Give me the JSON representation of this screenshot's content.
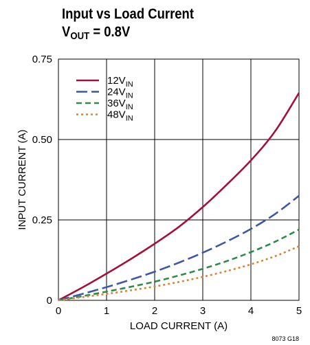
{
  "chart_data": {
    "type": "line",
    "title": "Input vs Load Current",
    "subtitle": {
      "main": "V",
      "sub": "OUT",
      "rest": " = 0.8V"
    },
    "xlabel": "LOAD CURRENT (A)",
    "ylabel": "INPUT CURRENT (A)",
    "xlim": [
      0,
      5
    ],
    "ylim": [
      0,
      0.75
    ],
    "x_ticks": [
      "0",
      "1",
      "2",
      "3",
      "4",
      "5"
    ],
    "y_ticks": [
      "0",
      "0.25",
      "0.50",
      "0.75"
    ],
    "grid": true,
    "legend_position": "top-left",
    "figure_id": "8073 G18",
    "series": [
      {
        "name": "12V",
        "name_sub": "IN",
        "color": "#a3113a",
        "style": "solid",
        "x": [
          0,
          0.5,
          1,
          1.5,
          2,
          2.5,
          3,
          3.5,
          4,
          4.5,
          5
        ],
        "y": [
          0,
          0.04,
          0.083,
          0.128,
          0.176,
          0.228,
          0.29,
          0.36,
          0.435,
          0.525,
          0.645
        ]
      },
      {
        "name": "24V",
        "name_sub": "IN",
        "color": "#3d56a6",
        "style": "longdash",
        "x": [
          0,
          0.5,
          1,
          1.5,
          2,
          2.5,
          3,
          3.5,
          4,
          4.5,
          5
        ],
        "y": [
          0,
          0.02,
          0.041,
          0.064,
          0.089,
          0.117,
          0.148,
          0.183,
          0.222,
          0.268,
          0.325
        ]
      },
      {
        "name": "36V",
        "name_sub": "IN",
        "color": "#2f8a48",
        "style": "dash",
        "x": [
          0,
          0.5,
          1,
          1.5,
          2,
          2.5,
          3,
          3.5,
          4,
          4.5,
          5
        ],
        "y": [
          0,
          0.013,
          0.027,
          0.042,
          0.058,
          0.077,
          0.098,
          0.122,
          0.15,
          0.182,
          0.22
        ]
      },
      {
        "name": "48V",
        "name_sub": "IN",
        "color": "#d5853a",
        "style": "dot",
        "x": [
          0,
          0.5,
          1,
          1.5,
          2,
          2.5,
          3,
          3.5,
          4,
          4.5,
          5
        ],
        "y": [
          0,
          0.01,
          0.02,
          0.031,
          0.043,
          0.057,
          0.073,
          0.091,
          0.112,
          0.137,
          0.168
        ]
      }
    ]
  }
}
